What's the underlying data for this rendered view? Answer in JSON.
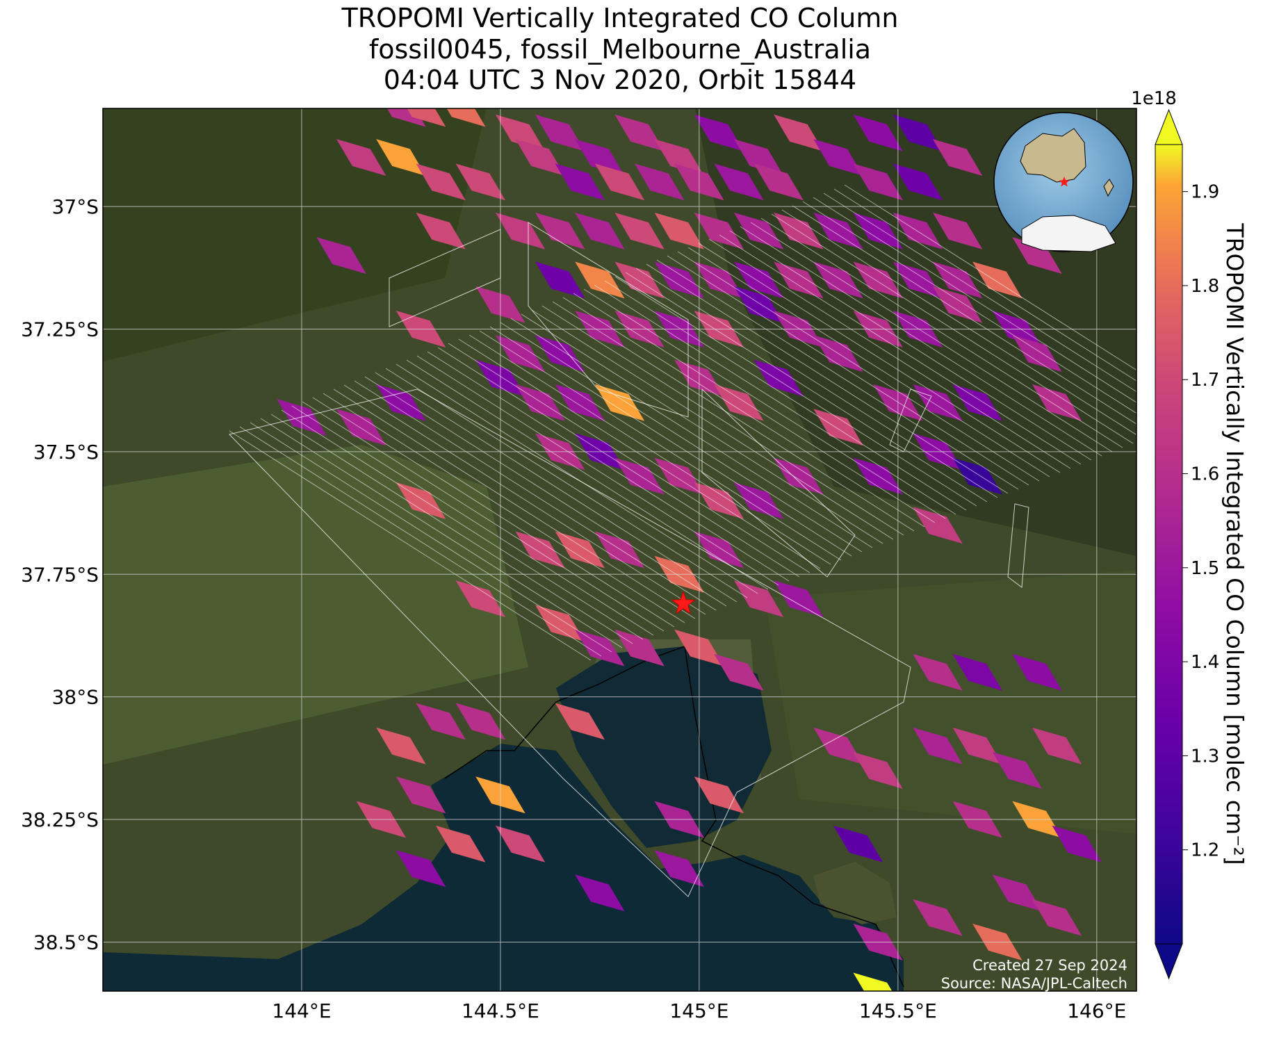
{
  "title": {
    "line1": "TROPOMI Vertically Integrated CO Column",
    "line2": "fossil0045, fossil_Melbourne_Australia",
    "line3": "04:04 UTC 3 Nov 2020, Orbit 15844"
  },
  "axes": {
    "lon_ticks": [
      "144°E",
      "144.5°E",
      "145°E",
      "145.5°E",
      "146°E"
    ],
    "lat_ticks": [
      "37°S",
      "37.25°S",
      "37.5°S",
      "37.75°S",
      "38°S",
      "38.25°S",
      "38.5°S"
    ],
    "lon_range": [
      143.5,
      146.1
    ],
    "lat_range": [
      -38.6,
      -36.8
    ]
  },
  "colorbar": {
    "label": "TROPOMI Vertically Integrated CO Column [molec cm⁻²]",
    "exponent": "1e18",
    "ticks": [
      "1.2",
      "1.3",
      "1.4",
      "1.5",
      "1.6",
      "1.7",
      "1.8",
      "1.9"
    ],
    "range": [
      1.1,
      1.95
    ],
    "colormap": "plasma"
  },
  "target": {
    "lon": 144.96,
    "lat": -37.81,
    "marker": "red-star",
    "color": "#ff0000"
  },
  "credits": {
    "created": "Created 27 Sep 2024",
    "source": "Source: NASA/JPL-Caltech"
  },
  "inset": {
    "type": "globe-locator",
    "marker": "red-star"
  },
  "chart_data": {
    "type": "heatmap",
    "description_units": "CO column ×1e18 molec cm⁻², lon/lat in degrees",
    "cells": [
      [
        144.25,
        -36.8,
        1.6
      ],
      [
        144.3,
        -36.8,
        1.75
      ],
      [
        144.4,
        -36.8,
        1.8
      ],
      [
        144.55,
        -36.85,
        1.7
      ],
      [
        144.15,
        -36.9,
        1.65
      ],
      [
        144.25,
        -36.9,
        1.9
      ],
      [
        144.35,
        -36.95,
        1.7
      ],
      [
        144.45,
        -36.95,
        1.7
      ],
      [
        144.6,
        -36.9,
        1.65
      ],
      [
        144.65,
        -36.85,
        1.55
      ],
      [
        144.75,
        -36.9,
        1.5
      ],
      [
        144.85,
        -36.85,
        1.6
      ],
      [
        144.95,
        -36.9,
        1.65
      ],
      [
        145.05,
        -36.85,
        1.45
      ],
      [
        145.15,
        -36.9,
        1.55
      ],
      [
        145.25,
        -36.85,
        1.7
      ],
      [
        145.35,
        -36.9,
        1.5
      ],
      [
        145.45,
        -36.85,
        1.45
      ],
      [
        145.55,
        -36.85,
        1.3
      ],
      [
        145.65,
        -36.9,
        1.6
      ],
      [
        145.55,
        -36.95,
        1.35
      ],
      [
        145.45,
        -36.95,
        1.55
      ],
      [
        144.7,
        -36.95,
        1.45
      ],
      [
        144.8,
        -36.95,
        1.7
      ],
      [
        144.9,
        -36.95,
        1.55
      ],
      [
        145.0,
        -36.95,
        1.6
      ],
      [
        145.1,
        -36.95,
        1.5
      ],
      [
        145.2,
        -36.95,
        1.6
      ],
      [
        144.55,
        -37.05,
        1.65
      ],
      [
        144.65,
        -37.05,
        1.6
      ],
      [
        144.75,
        -37.05,
        1.55
      ],
      [
        144.85,
        -37.05,
        1.7
      ],
      [
        144.95,
        -37.05,
        1.75
      ],
      [
        145.05,
        -37.05,
        1.6
      ],
      [
        145.15,
        -37.05,
        1.55
      ],
      [
        145.25,
        -37.05,
        1.65
      ],
      [
        145.35,
        -37.05,
        1.5
      ],
      [
        145.45,
        -37.05,
        1.45
      ],
      [
        145.55,
        -37.05,
        1.55
      ],
      [
        145.65,
        -37.05,
        1.6
      ],
      [
        144.1,
        -37.1,
        1.55
      ],
      [
        144.35,
        -37.05,
        1.7
      ],
      [
        144.5,
        -37.2,
        1.6
      ],
      [
        144.65,
        -37.15,
        1.35
      ],
      [
        144.75,
        -37.15,
        1.85
      ],
      [
        144.85,
        -37.15,
        1.7
      ],
      [
        144.95,
        -37.15,
        1.5
      ],
      [
        145.05,
        -37.15,
        1.55
      ],
      [
        145.15,
        -37.15,
        1.45
      ],
      [
        145.25,
        -37.15,
        1.6
      ],
      [
        145.35,
        -37.15,
        1.55
      ],
      [
        145.45,
        -37.15,
        1.6
      ],
      [
        145.55,
        -37.15,
        1.5
      ],
      [
        145.65,
        -37.15,
        1.55
      ],
      [
        145.75,
        -37.15,
        1.8
      ],
      [
        145.85,
        -37.1,
        1.6
      ],
      [
        144.3,
        -37.25,
        1.7
      ],
      [
        144.55,
        -37.3,
        1.55
      ],
      [
        144.65,
        -37.3,
        1.45
      ],
      [
        144.75,
        -37.25,
        1.55
      ],
      [
        144.85,
        -37.25,
        1.6
      ],
      [
        144.95,
        -37.25,
        1.5
      ],
      [
        145.05,
        -37.25,
        1.7
      ],
      [
        145.15,
        -37.2,
        1.35
      ],
      [
        145.25,
        -37.25,
        1.55
      ],
      [
        145.35,
        -37.3,
        1.55
      ],
      [
        145.45,
        -37.25,
        1.6
      ],
      [
        145.55,
        -37.25,
        1.5
      ],
      [
        145.65,
        -37.2,
        1.6
      ],
      [
        145.8,
        -37.25,
        1.45
      ],
      [
        145.85,
        -37.3,
        1.55
      ],
      [
        144.15,
        -37.45,
        1.55
      ],
      [
        144.25,
        -37.4,
        1.45
      ],
      [
        144.5,
        -37.35,
        1.4
      ],
      [
        144.6,
        -37.4,
        1.55
      ],
      [
        144.7,
        -37.4,
        1.5
      ],
      [
        144.8,
        -37.4,
        1.9
      ],
      [
        145.0,
        -37.35,
        1.6
      ],
      [
        145.1,
        -37.4,
        1.7
      ],
      [
        145.2,
        -37.35,
        1.4
      ],
      [
        145.35,
        -37.45,
        1.7
      ],
      [
        145.5,
        -37.4,
        1.55
      ],
      [
        145.6,
        -37.4,
        1.5
      ],
      [
        145.7,
        -37.4,
        1.4
      ],
      [
        145.9,
        -37.4,
        1.6
      ],
      [
        144.3,
        -37.6,
        1.75
      ],
      [
        144.65,
        -37.5,
        1.6
      ],
      [
        144.75,
        -37.5,
        1.35
      ],
      [
        144.85,
        -37.55,
        1.55
      ],
      [
        144.95,
        -37.55,
        1.6
      ],
      [
        145.05,
        -37.6,
        1.7
      ],
      [
        145.15,
        -37.6,
        1.5
      ],
      [
        145.25,
        -37.55,
        1.55
      ],
      [
        145.45,
        -37.55,
        1.45
      ],
      [
        145.6,
        -37.5,
        1.45
      ],
      [
        145.7,
        -37.55,
        1.2
      ],
      [
        145.6,
        -37.65,
        1.65
      ],
      [
        144.45,
        -37.8,
        1.7
      ],
      [
        144.6,
        -37.7,
        1.7
      ],
      [
        144.7,
        -37.7,
        1.75
      ],
      [
        144.8,
        -37.7,
        1.6
      ],
      [
        144.95,
        -37.75,
        1.8
      ],
      [
        145.05,
        -37.7,
        1.55
      ],
      [
        145.15,
        -37.8,
        1.65
      ],
      [
        145.25,
        -37.8,
        1.5
      ],
      [
        144.65,
        -37.85,
        1.75
      ],
      [
        144.75,
        -37.9,
        1.55
      ],
      [
        144.85,
        -37.9,
        1.6
      ],
      [
        145.0,
        -37.9,
        1.75
      ],
      [
        145.1,
        -37.95,
        1.6
      ],
      [
        145.6,
        -37.95,
        1.6
      ],
      [
        145.7,
        -37.95,
        1.4
      ],
      [
        145.85,
        -37.95,
        1.45
      ],
      [
        144.25,
        -38.1,
        1.75
      ],
      [
        144.35,
        -38.05,
        1.6
      ],
      [
        144.45,
        -38.05,
        1.6
      ],
      [
        144.7,
        -38.05,
        1.75
      ],
      [
        144.3,
        -38.2,
        1.6
      ],
      [
        144.5,
        -38.2,
        1.9
      ],
      [
        144.2,
        -38.25,
        1.7
      ],
      [
        144.4,
        -38.3,
        1.75
      ],
      [
        144.55,
        -38.3,
        1.7
      ],
      [
        144.3,
        -38.35,
        1.45
      ],
      [
        145.05,
        -38.2,
        1.75
      ],
      [
        145.35,
        -38.1,
        1.6
      ],
      [
        145.45,
        -38.15,
        1.65
      ],
      [
        145.6,
        -38.1,
        1.55
      ],
      [
        145.7,
        -38.1,
        1.65
      ],
      [
        145.8,
        -38.15,
        1.55
      ],
      [
        145.9,
        -38.1,
        1.65
      ],
      [
        145.4,
        -38.3,
        1.3
      ],
      [
        145.7,
        -38.25,
        1.6
      ],
      [
        145.85,
        -38.25,
        1.9
      ],
      [
        145.95,
        -38.3,
        1.45
      ],
      [
        145.8,
        -38.4,
        1.55
      ],
      [
        145.9,
        -38.45,
        1.6
      ],
      [
        145.6,
        -38.45,
        1.6
      ],
      [
        145.75,
        -38.5,
        1.8
      ],
      [
        145.45,
        -38.5,
        1.55
      ],
      [
        145.45,
        -38.6,
        1.95
      ],
      [
        144.75,
        -38.4,
        1.45
      ],
      [
        144.95,
        -38.35,
        1.5
      ],
      [
        144.95,
        -38.25,
        1.55
      ],
      [
        144.0,
        -37.43,
        1.5
      ]
    ]
  }
}
